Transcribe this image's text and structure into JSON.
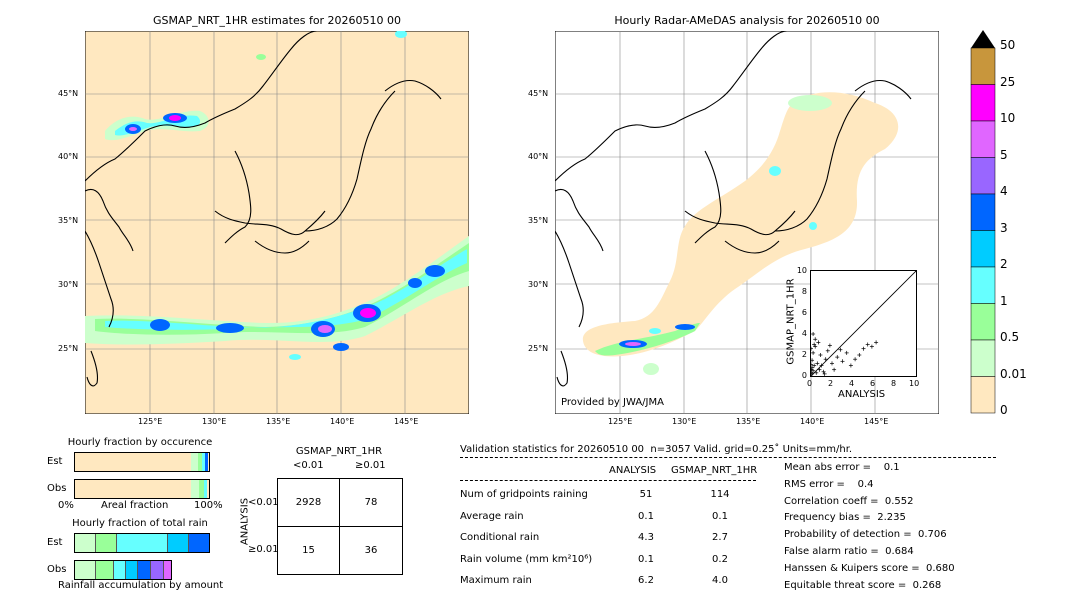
{
  "left_map": {
    "title": "GSMAP_NRT_1HR estimates for 20260510 00",
    "lat_labels": [
      "45°N",
      "40°N",
      "35°N",
      "30°N",
      "25°N"
    ],
    "lon_labels": [
      "125°E",
      "130°E",
      "135°E",
      "140°E",
      "145°E"
    ]
  },
  "right_map": {
    "title": "Hourly Radar-AMeDAS analysis for 20260510 00",
    "lat_labels": [
      "45°N",
      "40°N",
      "35°N",
      "30°N",
      "25°N"
    ],
    "lon_labels": [
      "125°E",
      "130°E",
      "135°E",
      "140°E",
      "145°E"
    ],
    "credit": "Provided by JWA/JMA"
  },
  "colorbar": {
    "labels": [
      "50",
      "25",
      "10",
      "5",
      "4",
      "3",
      "2",
      "1",
      "0.5",
      "0.01",
      "0"
    ],
    "colors": [
      "#c8963c",
      "#ff00ff",
      "#e066ff",
      "#9966ff",
      "#0066ff",
      "#00ccff",
      "#66ffff",
      "#99ff99",
      "#ccffcc",
      "#ffe8c0"
    ]
  },
  "fraction_occurrence": {
    "title": "Hourly fraction by occurence",
    "rows": [
      "Est",
      "Obs"
    ],
    "axis_left": "0%",
    "axis_mid": "Areal fraction",
    "axis_right": "100%"
  },
  "fraction_total": {
    "title": "Hourly fraction of total rain",
    "rows": [
      "Est",
      "Obs"
    ],
    "footer": "Rainfall accumulation by amount"
  },
  "contingency": {
    "title": "GSMAP_NRT_1HR",
    "col_lt": "<0.01",
    "col_ge": "≥0.01",
    "side_label": "ANALYSIS",
    "row_lt": "<0.01",
    "row_ge": "≥0.01",
    "cells": [
      "2928",
      "78",
      "15",
      "36"
    ]
  },
  "validation": {
    "header": "Validation statistics for 20260510 00  n=3057 Valid. grid=0.25˚ Units=mm/hr.",
    "col_analysis": "ANALYSIS",
    "col_gsmap": "GSMAP_NRT_1HR",
    "rows": [
      {
        "label": "Num of gridpoints raining",
        "a": "51",
        "g": "114"
      },
      {
        "label": "Average rain",
        "a": "0.1",
        "g": "0.1"
      },
      {
        "label": "Conditional rain",
        "a": "4.3",
        "g": "2.7"
      },
      {
        "label": "Rain volume (mm km²10⁶)",
        "a": "0.1",
        "g": "0.2"
      },
      {
        "label": "Maximum rain",
        "a": "6.2",
        "g": "4.0"
      }
    ],
    "scores": [
      "Mean abs error =    0.1",
      "RMS error =    0.4",
      "Correlation coeff =  0.552",
      "Frequency bias =  2.235",
      "Probability of detection =  0.706",
      "False alarm ratio =  0.684",
      "Hanssen & Kuipers score =  0.680",
      "Equitable threat score =  0.268"
    ]
  },
  "chart_data": {
    "type": "scatter",
    "title": "",
    "xlabel": "ANALYSIS",
    "ylabel": "GSMAP_NRT_1HR",
    "xlim": [
      0,
      10
    ],
    "ylim": [
      0,
      10
    ],
    "ticks": [
      "0",
      "2",
      "4",
      "6",
      "8",
      "10"
    ],
    "points": [
      [
        0.1,
        0.2
      ],
      [
        0.2,
        0.5
      ],
      [
        0.3,
        1.0
      ],
      [
        0.1,
        1.5
      ],
      [
        0.2,
        2.2
      ],
      [
        0.3,
        3.0
      ],
      [
        0.4,
        3.5
      ],
      [
        0.1,
        0.8
      ],
      [
        0.5,
        0.3
      ],
      [
        0.6,
        1.2
      ],
      [
        0.8,
        0.6
      ],
      [
        1.0,
        1.0
      ],
      [
        1.2,
        0.4
      ],
      [
        1.4,
        1.6
      ],
      [
        1.6,
        2.4
      ],
      [
        0.9,
        2.0
      ],
      [
        2.0,
        1.2
      ],
      [
        2.2,
        0.6
      ],
      [
        2.5,
        1.8
      ],
      [
        3.0,
        1.4
      ],
      [
        3.4,
        2.2
      ],
      [
        3.8,
        1.0
      ],
      [
        4.2,
        1.6
      ],
      [
        4.6,
        2.0
      ],
      [
        5.0,
        2.6
      ],
      [
        5.4,
        3.0
      ],
      [
        5.8,
        2.8
      ],
      [
        6.2,
        3.2
      ],
      [
        0.2,
        4.0
      ],
      [
        0.4,
        2.8
      ],
      [
        0.7,
        3.2
      ],
      [
        1.8,
        2.9
      ],
      [
        2.8,
        2.5
      ],
      [
        1.3,
        0.2
      ],
      [
        0.0,
        0.3
      ],
      [
        0.0,
        1.1
      ],
      [
        0.0,
        2.6
      ],
      [
        0.05,
        0.6
      ]
    ]
  }
}
